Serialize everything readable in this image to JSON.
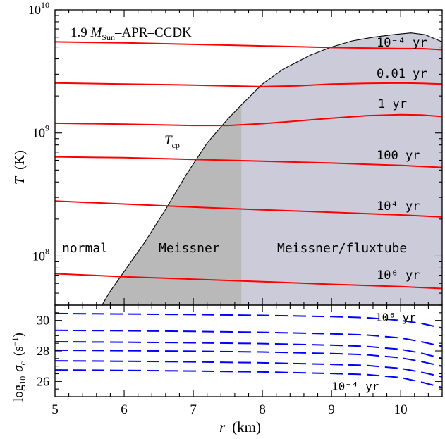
{
  "chart_data": [
    {
      "type": "line",
      "title": "1.9 M_Sun –APR–CCDK",
      "title_parts": {
        "prefix": "1.9 ",
        "mass_symbol": "M",
        "mass_sub": "Sun",
        "suffix": "–APR–CCDK"
      },
      "xlabel": "r (km)",
      "ylabel": "T (K)",
      "ylabel_parts": {
        "symbol": "T",
        "unit": "(K)"
      },
      "xlim": [
        5,
        10.6
      ],
      "ylim": [
        40000000,
        10000000000
      ],
      "yscale": "log",
      "x_ticks": [
        "5",
        "6",
        "7",
        "8",
        "9",
        "10"
      ],
      "y_ticks": [
        {
          "value": 100000000,
          "base": "10",
          "exp": "8"
        },
        {
          "value": 1000000000,
          "base": "10",
          "exp": "9"
        },
        {
          "value": 10000000000,
          "base": "10",
          "exp": "10"
        }
      ],
      "grid": false,
      "critical_temperature": {
        "label": "T",
        "label_sub": "cp",
        "points": [
          [
            5.68,
            40000000
          ],
          [
            5.78,
            50000000
          ],
          [
            6.0,
            75000000
          ],
          [
            6.3,
            130000000
          ],
          [
            6.6,
            240000000
          ],
          [
            6.9,
            460000000
          ],
          [
            7.2,
            830000000
          ],
          [
            7.5,
            1300000000
          ],
          [
            7.7,
            1700000000
          ],
          [
            8.0,
            2500000000
          ],
          [
            8.3,
            3300000000
          ],
          [
            8.7,
            4300000000
          ],
          [
            9.0,
            5000000000
          ],
          [
            9.3,
            5600000000
          ],
          [
            9.6,
            6000000000
          ],
          [
            9.9,
            6300000000
          ],
          [
            10.15,
            6500000000
          ],
          [
            10.35,
            6300000000
          ],
          [
            10.5,
            5800000000
          ],
          [
            10.6,
            5500000000
          ]
        ]
      },
      "regions": [
        {
          "label": "normal",
          "x_range": [
            5,
            5.9
          ]
        },
        {
          "label": "Meissner",
          "x_range": [
            5.9,
            7.7
          ],
          "color": "#b9b9b9"
        },
        {
          "label": "Meissner/fluxtube",
          "x_range": [
            7.7,
            10.6
          ],
          "color": "#cbcbd9"
        }
      ],
      "series": [
        {
          "name": "10⁻⁴ yr",
          "color": "#ff0000",
          "x": [
            5,
            6,
            7,
            8,
            9,
            9.5,
            10,
            10.3,
            10.6
          ],
          "y": [
            5500000000,
            5400000000,
            5250000000,
            5100000000,
            4950000000,
            4900000000,
            4850000000,
            4850000000,
            4750000000
          ]
        },
        {
          "name": "0.01 yr",
          "color": "#ff0000",
          "x": [
            5,
            6,
            7,
            8,
            8.5,
            9,
            9.5,
            10,
            10.3,
            10.6
          ],
          "y": [
            2550000000,
            2500000000,
            2450000000,
            2380000000,
            2420000000,
            2500000000,
            2530000000,
            2550000000,
            2530000000,
            2500000000
          ]
        },
        {
          "name": "1 yr",
          "color": "#ff0000",
          "x": [
            5,
            6,
            7,
            7.5,
            8,
            8.5,
            9,
            9.5,
            10,
            10.3,
            10.6
          ],
          "y": [
            1200000000,
            1180000000,
            1150000000,
            1150000000,
            1190000000,
            1250000000,
            1320000000,
            1380000000,
            1410000000,
            1400000000,
            1360000000
          ]
        },
        {
          "name": "100 yr",
          "color": "#ff0000",
          "x": [
            5,
            6,
            7,
            8,
            9,
            10,
            10.6
          ],
          "y": [
            640000000,
            630000000,
            610000000,
            590000000,
            570000000,
            545000000,
            525000000
          ]
        },
        {
          "name": "10⁴ yr",
          "color": "#ff0000",
          "x": [
            5,
            6,
            7,
            8,
            9,
            10,
            10.6
          ],
          "y": [
            280000000,
            265000000,
            250000000,
            238000000,
            227000000,
            216000000,
            208000000
          ]
        },
        {
          "name": "10⁶ yr",
          "color": "#ff0000",
          "x": [
            5,
            6,
            7,
            8,
            9,
            10,
            10.6
          ],
          "y": [
            72000000,
            68000000,
            65000000,
            62000000,
            59000000,
            56500000,
            54500000
          ]
        }
      ]
    },
    {
      "type": "line",
      "xlabel": "r (km)",
      "ylabel": "log10 σc (s⁻¹)",
      "ylabel_parts": {
        "prefix": "log",
        "prefix_sub": "10",
        "symbol": "σ",
        "symbol_sub": "c",
        "unit": "(s",
        "unit_sup": "−1",
        "unit_close": ")"
      },
      "xlim": [
        5,
        10.6
      ],
      "ylim": [
        25,
        31
      ],
      "yscale": "linear",
      "x_ticks": [
        "5",
        "6",
        "7",
        "8",
        "9",
        "10"
      ],
      "y_ticks": [
        "26",
        "28",
        "30"
      ],
      "grid": false,
      "annotations": [
        {
          "text": "10⁶ yr",
          "near_series": 0
        },
        {
          "text": "10⁻⁴ yr",
          "near_series": 5
        }
      ],
      "series": [
        {
          "color": "#0000ff",
          "dash": "long-dash",
          "x": [
            5,
            6,
            7,
            8,
            9,
            9.5,
            10,
            10.3,
            10.6
          ],
          "y": [
            30.45,
            30.42,
            30.38,
            30.33,
            30.25,
            30.18,
            30.0,
            29.8,
            29.5
          ]
        },
        {
          "color": "#0000ff",
          "dash": "long-dash",
          "x": [
            5,
            6,
            7,
            8,
            9,
            9.5,
            10,
            10.3,
            10.6
          ],
          "y": [
            29.35,
            29.32,
            29.28,
            29.22,
            29.12,
            29.05,
            28.85,
            28.6,
            28.3
          ]
        },
        {
          "color": "#0000ff",
          "dash": "long-dash",
          "x": [
            5,
            6,
            7,
            8,
            9,
            9.5,
            10,
            10.3,
            10.6
          ],
          "y": [
            28.6,
            28.57,
            28.53,
            28.48,
            28.38,
            28.3,
            28.1,
            27.85,
            27.5
          ]
        },
        {
          "color": "#0000ff",
          "dash": "long-dash",
          "x": [
            5,
            6,
            7,
            8,
            9,
            9.5,
            10,
            10.3,
            10.6
          ],
          "y": [
            28.05,
            28.02,
            27.98,
            27.93,
            27.83,
            27.75,
            27.55,
            27.3,
            27.0
          ]
        },
        {
          "color": "#0000ff",
          "dash": "long-dash",
          "x": [
            5,
            6,
            7,
            8,
            9,
            9.5,
            10,
            10.3,
            10.6
          ],
          "y": [
            27.35,
            27.32,
            27.28,
            27.22,
            27.12,
            27.05,
            26.85,
            26.6,
            26.3
          ]
        },
        {
          "color": "#0000ff",
          "dash": "long-dash",
          "x": [
            5,
            6,
            7,
            8,
            9,
            9.5,
            10,
            10.3,
            10.6
          ],
          "y": [
            26.75,
            26.72,
            26.68,
            26.62,
            26.52,
            26.45,
            26.25,
            25.95,
            25.6
          ]
        }
      ]
    }
  ]
}
